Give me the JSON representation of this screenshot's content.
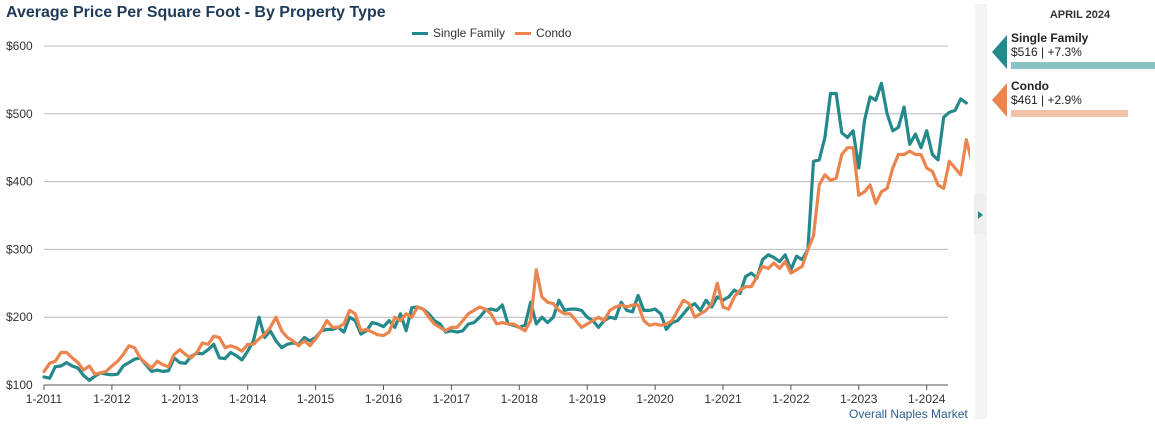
{
  "title": "Average Price Per Square Foot - By Property Type",
  "legend": {
    "single_family": "Single Family",
    "condo": "Condo"
  },
  "source_note": "Overall Naples Market",
  "colors": {
    "single_family": "#23898b",
    "condo": "#ec844e",
    "single_family_bar": "#8ac3c4",
    "condo_bar": "#f4c3a7",
    "grid": "#b8b8b8"
  },
  "side_panel": {
    "period": "APRIL 2024",
    "stats": [
      {
        "name": "Single Family",
        "value": "$516 | +7.3%",
        "bar_fraction": 1.0
      },
      {
        "name": "Condo",
        "value": "$461 | +2.9%",
        "bar_fraction": 0.81
      }
    ]
  },
  "chart_data": {
    "type": "line",
    "title": "Average Price Per Square Foot - By Property Type",
    "x_start": "2011-01",
    "x_end": "2024-04",
    "x_tick_labels": [
      "1-2011",
      "1-2012",
      "1-2013",
      "1-2014",
      "1-2015",
      "1-2016",
      "1-2017",
      "1-2018",
      "1-2019",
      "1-2020",
      "1-2021",
      "1-2022",
      "1-2023",
      "1-2024"
    ],
    "y_tick_labels": [
      "$100",
      "$200",
      "$300",
      "$400",
      "$500",
      "$600"
    ],
    "ylim": [
      100,
      600
    ],
    "y_ticks": [
      100,
      200,
      300,
      400,
      500,
      600
    ],
    "grid": true,
    "legend_position": "top-center",
    "series": [
      {
        "name": "Single Family",
        "color": "#23898b",
        "values": [
          112,
          110,
          127,
          128,
          133,
          128,
          125,
          114,
          107,
          113,
          118,
          116,
          115,
          116,
          128,
          133,
          138,
          140,
          130,
          120,
          122,
          120,
          121,
          140,
          133,
          132,
          142,
          147,
          146,
          152,
          160,
          140,
          139,
          148,
          143,
          137,
          150,
          165,
          200,
          170,
          180,
          165,
          155,
          160,
          162,
          160,
          170,
          165,
          170,
          180,
          182,
          182,
          185,
          178,
          200,
          195,
          175,
          180,
          192,
          190,
          186,
          195,
          185,
          205,
          180,
          214,
          215,
          212,
          205,
          195,
          190,
          178,
          180,
          178,
          180,
          190,
          192,
          200,
          210,
          212,
          210,
          218,
          190,
          188,
          185,
          188,
          222,
          190,
          200,
          192,
          200,
          225,
          210,
          212,
          212,
          210,
          200,
          195,
          185,
          195,
          200,
          198,
          222,
          210,
          208,
          232,
          210,
          210,
          212,
          205,
          182,
          192,
          195,
          205,
          215,
          220,
          210,
          225,
          215,
          230,
          225,
          230,
          240,
          235,
          260,
          265,
          258,
          285,
          292,
          288,
          282,
          292,
          270,
          290,
          285,
          300,
          430,
          432,
          465,
          530,
          530,
          472,
          465,
          475,
          420,
          490,
          525,
          520,
          545,
          500,
          475,
          480,
          510,
          455,
          470,
          450,
          475,
          440,
          432,
          495,
          502,
          505,
          522,
          516
        ]
      },
      {
        "name": "Condo",
        "color": "#ec844e",
        "values": [
          120,
          132,
          135,
          148,
          148,
          140,
          133,
          122,
          128,
          116,
          118,
          120,
          128,
          135,
          145,
          158,
          155,
          140,
          132,
          125,
          135,
          130,
          127,
          145,
          152,
          145,
          140,
          148,
          162,
          160,
          172,
          170,
          155,
          158,
          155,
          150,
          160,
          160,
          168,
          175,
          185,
          200,
          180,
          170,
          165,
          158,
          165,
          158,
          168,
          180,
          195,
          185,
          185,
          190,
          210,
          205,
          180,
          182,
          178,
          174,
          173,
          178,
          200,
          195,
          205,
          200,
          215,
          212,
          200,
          190,
          185,
          180,
          185,
          185,
          195,
          205,
          210,
          215,
          212,
          205,
          190,
          192,
          190,
          190,
          185,
          180,
          195,
          270,
          230,
          222,
          220,
          210,
          205,
          205,
          195,
          185,
          190,
          195,
          200,
          195,
          210,
          215,
          218,
          215,
          218,
          218,
          195,
          188,
          190,
          188,
          190,
          195,
          210,
          225,
          220,
          200,
          205,
          210,
          220,
          250,
          215,
          212,
          230,
          240,
          245,
          245,
          260,
          275,
          272,
          280,
          272,
          282,
          265,
          270,
          275,
          300,
          320,
          395,
          410,
          402,
          405,
          440,
          450,
          450,
          380,
          385,
          395,
          368,
          385,
          390,
          420,
          440,
          440,
          445,
          440,
          440,
          420,
          415,
          395,
          390,
          430,
          420,
          410,
          462,
          428,
          430,
          464,
          461
        ]
      }
    ]
  }
}
